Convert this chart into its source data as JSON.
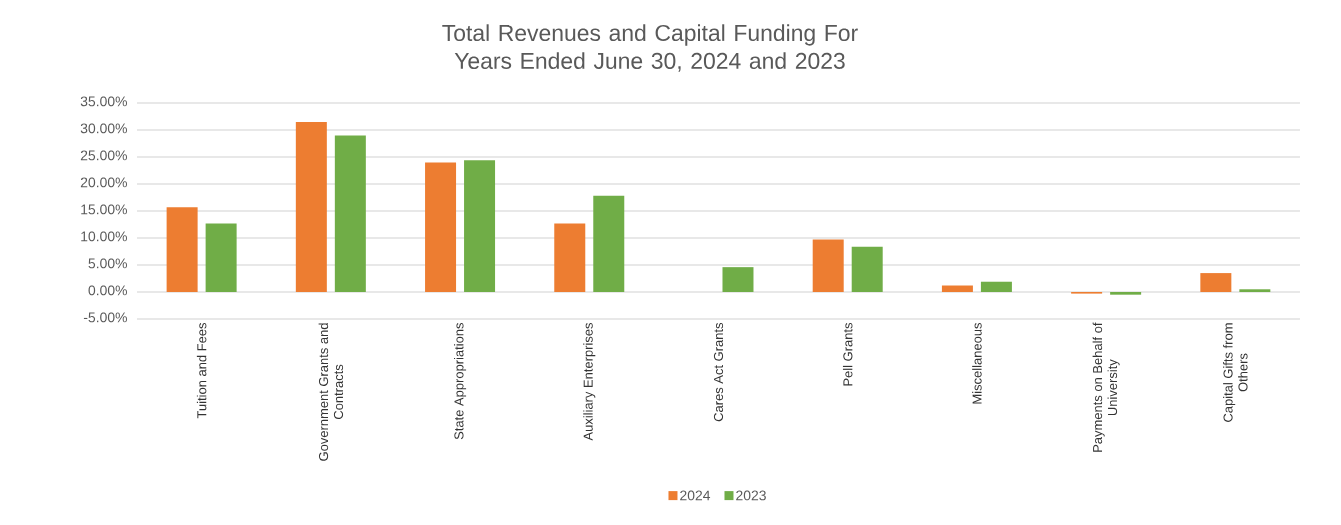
{
  "chart_data": {
    "type": "bar",
    "title": "Total Revenues and Capital Funding For Years Ended June 30, 2024 and 2023",
    "categories": [
      "Tuition and Fees",
      "Government Grants and Contracts",
      "State Appropriations",
      "Auxiliary Enterprises",
      "Cares Act Grants",
      "Pell Grants",
      "Miscellaneous",
      "Payments on Behalf of University",
      "Capital Gifts from Others"
    ],
    "series": [
      {
        "name": "2024",
        "color": "#ed7d31",
        "values": [
          15.7,
          31.5,
          24.0,
          12.7,
          0,
          9.7,
          1.2,
          -0.3,
          3.5
        ]
      },
      {
        "name": "2023",
        "color": "#70ad47",
        "values": [
          12.7,
          29.0,
          24.4,
          17.8,
          4.6,
          8.4,
          1.9,
          -0.5,
          0.5
        ]
      }
    ],
    "ylim": [
      -5,
      35
    ],
    "yticks": [
      {
        "value": -5,
        "label": "-5.00%"
      },
      {
        "value": 0,
        "label": "0.00%"
      },
      {
        "value": 5,
        "label": "5.00%"
      },
      {
        "value": 10,
        "label": "10.00%"
      },
      {
        "value": 15,
        "label": "15.00%"
      },
      {
        "value": 20,
        "label": "20.00%"
      },
      {
        "value": 25,
        "label": "25.00%"
      },
      {
        "value": 30,
        "label": "30.00%"
      },
      {
        "value": 35,
        "label": "35.00%"
      }
    ],
    "grid": "y",
    "legend": "bottom"
  }
}
